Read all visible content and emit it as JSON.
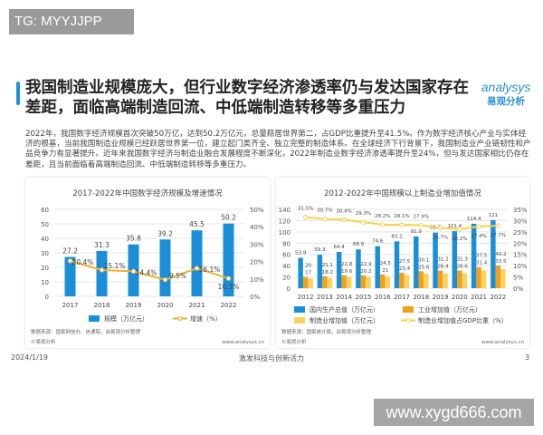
{
  "watermark_top": "TG: MYYJJPP",
  "title": "我国制造业规模庞大，但行业数字经济渗透率仍与发达国家存在差距，面临高端制造回流、中低端制造转移等多重压力",
  "logo": {
    "en": "analysys",
    "cn": "易观分析"
  },
  "paragraph": "2022年，我国数字经济规模首次突破50万亿，达到50.2万亿元，总量稳居世界第二，占GDP比重提升至41.5%。作为数字经济核心产业与实体经济的根基，当前我国制造业规模已经跃居世界第一位，建立起门类齐全、独立完整的制造体系。在全球经济下行背景下，我国制造业产业链韧性和产品竞争力有显著提升。近年来我国数字经济与制造业融合发展程度不断深化，2022年制造业数字经济渗透率提升至24%，但与发达国家相比仍存在差距，且当前面临着高端制造回流、中低端制造转移等多重压力。",
  "footer": {
    "date": "2024/1/19",
    "center": "激发科技与创新活力",
    "page": "3"
  },
  "watermark_bottom": "www.xygd666.com",
  "colors": {
    "accent": "#1e8fd6",
    "bar_blue": "#1a8fd8",
    "bar_orange": "#f0a01e",
    "bar_yellow": "#fbd25e",
    "line_orange": "#f0b030",
    "line_yellow": "#f5d24a"
  },
  "chart_data": [
    {
      "type": "bar",
      "title": "2017-2022年中国数字经济规模及增速情况",
      "categories": [
        "2017",
        "2018",
        "2019",
        "2020",
        "2021",
        "2022"
      ],
      "series": [
        {
          "name": "规模（万亿元）",
          "type": "bar",
          "axis": "left",
          "values": [
            27.2,
            31.3,
            35.8,
            39.2,
            45.5,
            50.2
          ],
          "labels": [
            "27.2",
            "31.3",
            "35.8",
            "39.2",
            "45.5",
            "50.2"
          ]
        },
        {
          "name": "增速（%）",
          "type": "line",
          "axis": "right",
          "values": [
            20.4,
            15.1,
            14.4,
            9.5,
            16.1,
            10.3
          ],
          "labels": [
            "20.4%",
            "15.1%",
            "14.4%",
            "9.5%",
            "16.1%",
            "10.3%"
          ]
        }
      ],
      "ylim": [
        0,
        60
      ],
      "yticks": [
        "0",
        "10",
        "20",
        "30",
        "40",
        "50",
        "60"
      ],
      "y2lim": [
        0,
        50
      ],
      "y2ticks": [
        "0%",
        "10%",
        "20%",
        "30%",
        "40%",
        "50%"
      ],
      "grid": true,
      "legend": "bottom",
      "source": "数据来源：国家网信办、信通院，由易观分析整理",
      "copyright": "©易观分析",
      "site": "www.analysys.cn"
    },
    {
      "type": "bar",
      "title": "2012-2022年中国规模以上制造业增加值情况",
      "categories": [
        "2012",
        "2013",
        "2014",
        "2015",
        "2016",
        "2017",
        "2018",
        "2019",
        "2020",
        "2021",
        "2022"
      ],
      "series": [
        {
          "name": "国内生产总值（万亿元）",
          "type": "bar",
          "axis": "left",
          "values": [
            53.9,
            59.3,
            64.4,
            68.9,
            74.6,
            83.2,
            91.9,
            98.7,
            101.4,
            114.4,
            121
          ],
          "labels": [
            "53.9",
            "59.3",
            "64.4",
            "68.9",
            "74.6",
            "83.2",
            "91.9",
            "98.7",
            "101.4",
            "114.4",
            "121"
          ]
        },
        {
          "name": "工业增加值（万亿元）",
          "type": "bar",
          "axis": "left",
          "values": [
            20,
            21.1,
            22.8,
            22.9,
            24.5,
            27.5,
            30.1,
            31.2,
            31.3,
            37.5,
            40.2
          ],
          "labels": [
            "20",
            "21.1",
            "22.8",
            "22.9",
            "24.5",
            "27.5",
            "30.1",
            "31.2",
            "31.3",
            "37.5",
            "40.2"
          ]
        },
        {
          "name": "制造业增加值（万亿元）",
          "type": "bar",
          "axis": "left",
          "values": [
            17,
            18.2,
            19.6,
            20.2,
            21,
            23.4,
            25.6,
            26.4,
            26.6,
            31.4,
            33.5
          ],
          "labels": [
            "17",
            "18.2",
            "19.6",
            "20.2",
            "21",
            "23.4",
            "25.6",
            "26.4",
            "26.6",
            "31.4",
            "33.5"
          ]
        },
        {
          "name": "制造业增加值占GDP比重（%）",
          "type": "line",
          "axis": "right",
          "values": [
            31.5,
            30.7,
            30.4,
            29.3,
            28.2,
            28.1,
            27.9,
            26.7,
            26.2,
            27.4,
            27.7
          ],
          "labels": [
            "31.5%",
            "30.7%",
            "30.4%",
            "29.3%",
            "28.2%",
            "28.1%",
            "27.9%",
            "26.7%",
            "26.2%",
            "27.4%",
            "27.7%"
          ]
        }
      ],
      "ylim": [
        0,
        140
      ],
      "yticks": [
        "0",
        "20",
        "40",
        "60",
        "80",
        "100",
        "120",
        "140"
      ],
      "y2lim": [
        0,
        35
      ],
      "y2ticks": [
        "0%",
        "5%",
        "10%",
        "15%",
        "20%",
        "25%",
        "30%",
        "35%"
      ],
      "grid": true,
      "legend": "bottom",
      "source": "数据来源：国家统计局，由易观分析整理",
      "copyright": "©易观分析",
      "site": "www.analysys.cn"
    }
  ]
}
